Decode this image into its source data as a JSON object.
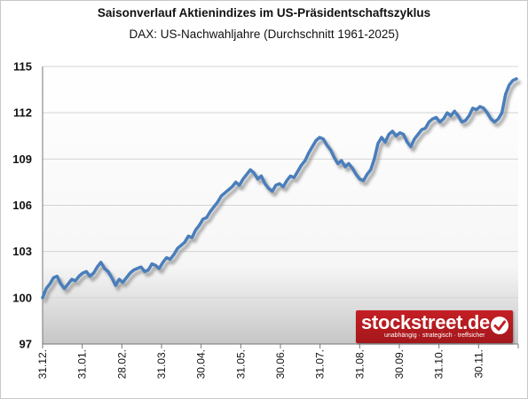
{
  "title": "Saisonverlauf Aktienindizes im US-Präsidentschaftszyklus",
  "subtitle": "DAX: US-Nachwahljahre (Durchschnitt 1961-2025)",
  "logo": {
    "text": "stockstreet.de",
    "tagline": "unabhängig · strategisch · treffsicher",
    "icon": "checkmark-icon"
  },
  "colors": {
    "line": "#4a7ebb",
    "shadow": "#9a9a9a",
    "logo": "#c41f24"
  },
  "chart_data": {
    "type": "line",
    "title": "Saisonverlauf Aktienindizes im US-Präsidentschaftszyklus",
    "subtitle": "DAX: US-Nachwahljahre (Durchschnitt 1961-2025)",
    "xlabel": "",
    "ylabel": "",
    "ylim": [
      97,
      115
    ],
    "yticks": [
      97,
      100,
      103,
      106,
      109,
      112,
      115
    ],
    "ytick_labels": [
      "97",
      "100",
      "103",
      "106",
      "109",
      "112",
      "115"
    ],
    "xtick_labels": [
      "31.12.",
      "31.01.",
      "28.02.",
      "31.03.",
      "30.04.",
      "31.05.",
      "30.06.",
      "31.07.",
      "31.08.",
      "30.09.",
      "31.10.",
      "30.11."
    ],
    "grid": true,
    "series": [
      {
        "values": [
          100,
          100.6,
          100.9,
          101.3,
          101.4,
          100.9,
          100.6,
          100.9,
          101.2,
          101.1,
          101.4,
          101.6,
          101.7,
          101.4,
          101.6,
          102.0,
          102.3,
          101.9,
          101.7,
          101.3,
          100.8,
          101.2,
          101.0,
          101.3,
          101.6,
          101.8,
          101.9,
          102.0,
          101.7,
          101.8,
          102.2,
          102.1,
          101.9,
          102.3,
          102.6,
          102.5,
          102.8,
          103.2,
          103.4,
          103.6,
          104.0,
          103.9,
          104.4,
          104.7,
          105.1,
          105.2,
          105.6,
          105.9,
          106.2,
          106.6,
          106.8,
          107.0,
          107.2,
          107.5,
          107.3,
          107.7,
          108.0,
          108.3,
          108.1,
          107.7,
          107.9,
          107.4,
          107.1,
          106.9,
          107.3,
          107.4,
          107.2,
          107.6,
          107.9,
          107.8,
          108.2,
          108.6,
          108.9,
          109.4,
          109.8,
          110.2,
          110.4,
          110.3,
          109.9,
          109.6,
          109.1,
          108.7,
          108.9,
          108.5,
          108.7,
          108.4,
          108.0,
          107.7,
          107.6,
          108.0,
          108.3,
          109.0,
          110.0,
          110.4,
          110.1,
          110.6,
          110.8,
          110.5,
          110.7,
          110.6,
          110.1,
          109.8,
          110.3,
          110.6,
          110.9,
          111.0,
          111.4,
          111.6,
          111.7,
          111.4,
          111.6,
          112.0,
          111.8,
          112.1,
          111.8,
          111.4,
          111.5,
          111.8,
          112.3,
          112.2,
          112.4,
          112.3,
          112.0,
          111.6,
          111.4,
          111.6,
          112.0,
          113.2,
          113.8,
          114.1,
          114.2
        ]
      }
    ]
  }
}
